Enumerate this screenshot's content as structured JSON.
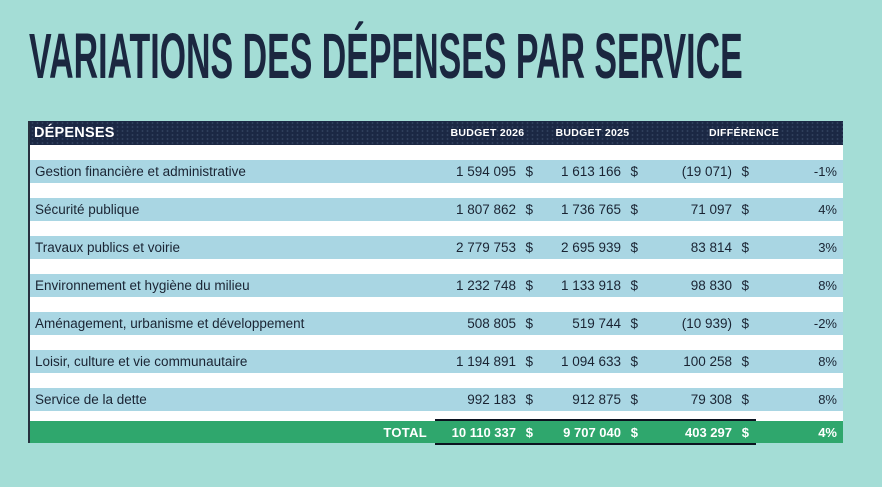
{
  "title": "VARIATIONS DES DÉPENSES PAR SERVICE",
  "table": {
    "header": {
      "expenses": "DÉPENSES",
      "budget_2026": "BUDGET 2026",
      "budget_2025": "BUDGET 2025",
      "difference": "DIFFÉRENCE"
    },
    "currency": "$",
    "rows": [
      {
        "name": "Gestion financière et administrative",
        "budget_2026": "1 594 095",
        "budget_2025": "1 613 166",
        "difference": "(19 071)",
        "percent": "-1%"
      },
      {
        "name": "Sécurité publique",
        "budget_2026": "1 807 862",
        "budget_2025": "1 736 765",
        "difference": "71 097",
        "percent": "4%"
      },
      {
        "name": "Travaux publics et voirie",
        "budget_2026": "2 779 753",
        "budget_2025": "2 695 939",
        "difference": "83 814",
        "percent": "3%"
      },
      {
        "name": "Environnement et hygiène du milieu",
        "budget_2026": "1 232 748",
        "budget_2025": "1 133 918",
        "difference": "98 830",
        "percent": "8%"
      },
      {
        "name": "Aménagement, urbanisme et développement",
        "budget_2026": "508 805",
        "budget_2025": "519 744",
        "difference": "(10 939)",
        "percent": "-2%"
      },
      {
        "name": "Loisir, culture et vie communautaire",
        "budget_2026": "1 194 891",
        "budget_2025": "1 094 633",
        "difference": "100 258",
        "percent": "8%"
      },
      {
        "name": "Service de la dette",
        "budget_2026": "992 183",
        "budget_2025": "912 875",
        "difference": "79 308",
        "percent": "8%"
      }
    ],
    "total": {
      "label": "TOTAL",
      "budget_2026": "10 110 337",
      "budget_2025": "9 707 040",
      "difference": "403 297",
      "percent": "4%"
    }
  },
  "colors": {
    "background": "#a4ddd6",
    "header_bar": "#1b2844",
    "row_fill": "#a9d6e3",
    "total_fill": "#2fa76d",
    "title_text": "#1b2740",
    "body_text": "#1a2433"
  }
}
